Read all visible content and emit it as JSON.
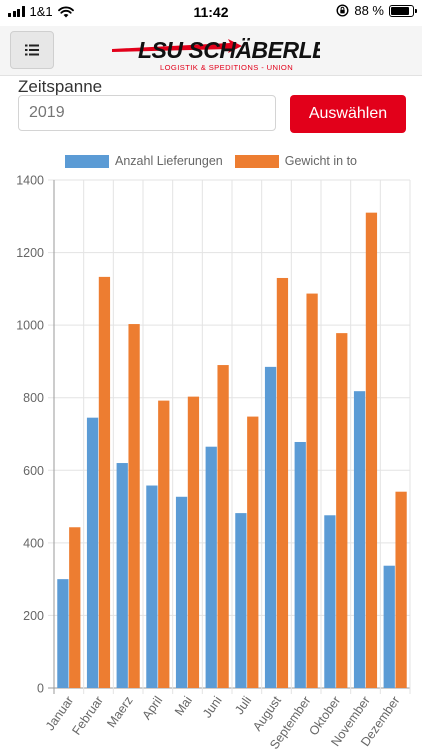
{
  "status_bar": {
    "carrier": "1&1",
    "time": "11:42",
    "battery_text": "88 %",
    "battery_level": 0.88
  },
  "header": {
    "menu_icon": "list-icon",
    "logo_main": "LSU SCHÄBERLE",
    "logo_sub": "LOGISTIK & SPEDITIONS - UNION"
  },
  "filter": {
    "label": "Zeitspanne",
    "value": "",
    "placeholder": "2019",
    "button_label": "Auswählen"
  },
  "colors": {
    "series_a": "#5b9bd5",
    "series_b": "#ed7d31",
    "button": "#e2001a"
  },
  "chart_data": {
    "type": "bar",
    "categories": [
      "Januar",
      "Februar",
      "Maerz",
      "April",
      "Mai",
      "Juni",
      "Juli",
      "August",
      "September",
      "Oktober",
      "November",
      "Dezember"
    ],
    "series": [
      {
        "name": "Anzahl Lieferungen",
        "values": [
          300,
          745,
          620,
          558,
          527,
          665,
          482,
          885,
          678,
          476,
          818,
          337
        ]
      },
      {
        "name": "Gewicht in to",
        "values": [
          443,
          1133,
          1003,
          792,
          803,
          890,
          748,
          1130,
          1087,
          978,
          1310,
          541
        ]
      }
    ],
    "ylim": [
      0,
      1400
    ],
    "yticks": [
      0,
      200,
      400,
      600,
      800,
      1000,
      1200,
      1400
    ],
    "grid": true,
    "legend": "top"
  }
}
